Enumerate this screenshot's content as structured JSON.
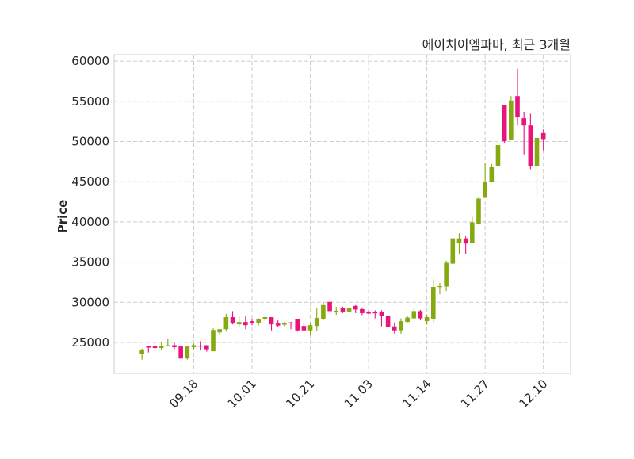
{
  "chart_data": {
    "type": "candlestick",
    "title": "에이치이엠파마, 최근 3개월",
    "xlabel": "",
    "ylabel": "Price",
    "ylim": [
      21150,
      60800
    ],
    "xlim": [
      -4.3,
      66.2
    ],
    "yticks": [
      25000,
      30000,
      35000,
      40000,
      45000,
      50000,
      55000,
      60000
    ],
    "xticks": [
      {
        "index": 8,
        "label": "09.18"
      },
      {
        "index": 17,
        "label": "10.01"
      },
      {
        "index": 26,
        "label": "10.21"
      },
      {
        "index": 35,
        "label": "11.03"
      },
      {
        "index": 44,
        "label": "11.14"
      },
      {
        "index": 53,
        "label": "11.27"
      },
      {
        "index": 62,
        "label": "12.10"
      }
    ],
    "grid": true,
    "colors": {
      "up": "#84aa10",
      "down": "#e8147c",
      "grid": "#cccccc",
      "frame": "#d6d6d6"
    },
    "ohlc_columns": [
      "open",
      "high",
      "low",
      "close"
    ],
    "candles": [
      [
        23550,
        24250,
        22850,
        24100
      ],
      [
        24550,
        24550,
        23750,
        24350
      ],
      [
        24500,
        25000,
        23900,
        24300
      ],
      [
        24300,
        25000,
        24050,
        24550
      ],
      [
        24500,
        25500,
        24500,
        24650
      ],
      [
        24650,
        24950,
        24150,
        24400
      ],
      [
        24500,
        24500,
        23000,
        23000
      ],
      [
        23000,
        24500,
        22850,
        24500
      ],
      [
        24400,
        24850,
        24150,
        24650
      ],
      [
        24600,
        25150,
        24000,
        24500
      ],
      [
        24650,
        24650,
        23850,
        24150
      ],
      [
        23900,
        26750,
        23900,
        26550
      ],
      [
        26250,
        26650,
        26000,
        26650
      ],
      [
        26650,
        28550,
        26350,
        28150
      ],
      [
        28150,
        28900,
        27250,
        27350
      ],
      [
        27250,
        28250,
        27000,
        27550
      ],
      [
        27550,
        28250,
        26650,
        27150
      ],
      [
        27650,
        27850,
        27150,
        27400
      ],
      [
        27450,
        28000,
        27100,
        27900
      ],
      [
        27850,
        28350,
        27650,
        28150
      ],
      [
        28150,
        28150,
        26500,
        27250
      ],
      [
        27350,
        27750,
        26900,
        27100
      ],
      [
        27200,
        27550,
        27000,
        27450
      ],
      [
        27500,
        27550,
        26650,
        27450
      ],
      [
        27900,
        27900,
        26350,
        26500
      ],
      [
        27050,
        27350,
        26350,
        26500
      ],
      [
        26500,
        27350,
        25850,
        27150
      ],
      [
        27050,
        29250,
        26450,
        28050
      ],
      [
        27900,
        30000,
        27750,
        29650
      ],
      [
        30050,
        30050,
        28900,
        28900
      ],
      [
        28900,
        29450,
        28450,
        28950
      ],
      [
        29250,
        29450,
        28650,
        28850
      ],
      [
        28850,
        29400,
        28750,
        29250
      ],
      [
        29550,
        29650,
        28650,
        29100
      ],
      [
        29150,
        29350,
        28400,
        28650
      ],
      [
        28850,
        29000,
        28500,
        28600
      ],
      [
        28750,
        29000,
        28000,
        28700
      ],
      [
        28750,
        29000,
        27000,
        28250
      ],
      [
        28350,
        28350,
        26850,
        26900
      ],
      [
        27000,
        27500,
        26100,
        26500
      ],
      [
        26500,
        28000,
        26100,
        27650
      ],
      [
        27550,
        28250,
        27500,
        28100
      ],
      [
        28000,
        29250,
        27900,
        28900
      ],
      [
        28900,
        29050,
        27750,
        28000
      ],
      [
        27650,
        28500,
        27250,
        28150
      ],
      [
        27950,
        32850,
        27550,
        31900
      ],
      [
        31900,
        32400,
        31000,
        32000
      ],
      [
        31950,
        35150,
        31400,
        34900
      ],
      [
        34800,
        37950,
        34800,
        37950
      ],
      [
        37400,
        38600,
        36050,
        37950
      ],
      [
        37950,
        38200,
        35950,
        37300
      ],
      [
        37350,
        40650,
        37350,
        39950
      ],
      [
        39750,
        43100,
        39650,
        42900
      ],
      [
        43000,
        47300,
        43000,
        44950
      ],
      [
        44950,
        47200,
        44900,
        46800
      ],
      [
        46900,
        49950,
        46600,
        49550
      ],
      [
        54500,
        54500,
        49750,
        50050
      ],
      [
        50200,
        55650,
        50200,
        55100
      ],
      [
        55650,
        59050,
        52000,
        53000
      ],
      [
        52900,
        53700,
        48400,
        52000
      ],
      [
        52000,
        53450,
        46550,
        46950
      ],
      [
        46950,
        50950,
        43000,
        50450
      ],
      [
        51050,
        51500,
        48900,
        50300
      ]
    ]
  }
}
